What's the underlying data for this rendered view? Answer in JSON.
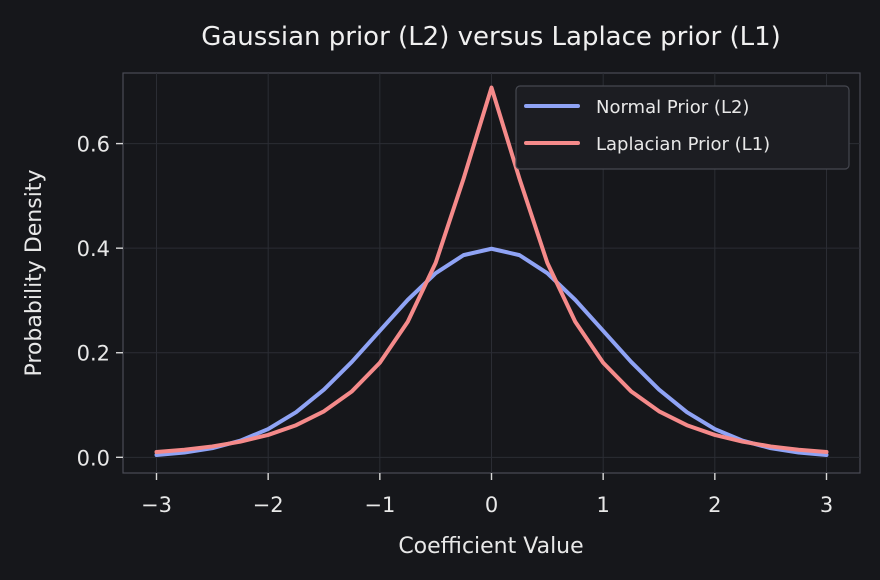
{
  "chart_data": {
    "type": "line",
    "title": "Gaussian prior (L2) versus Laplace prior (L1)",
    "xlabel": "Coefficient Value",
    "ylabel": "Probability Density",
    "xlim": [
      -3.3,
      3.3
    ],
    "ylim": [
      -0.03,
      0.735
    ],
    "xticks": [
      -3,
      -2,
      -1,
      0,
      1,
      2,
      3
    ],
    "xtick_labels": [
      "−3",
      "−2",
      "−1",
      "0",
      "1",
      "2",
      "3"
    ],
    "yticks": [
      0.0,
      0.2,
      0.4,
      0.6
    ],
    "ytick_labels": [
      "0.0",
      "0.2",
      "0.4",
      "0.6"
    ],
    "grid": true,
    "legend_position": "top-right",
    "background": "#16171b",
    "x": [
      -3.0,
      -2.75,
      -2.5,
      -2.25,
      -2.0,
      -1.75,
      -1.5,
      -1.25,
      -1.0,
      -0.75,
      -0.5,
      -0.25,
      0.0,
      0.25,
      0.5,
      0.75,
      1.0,
      1.25,
      1.5,
      1.75,
      2.0,
      2.25,
      2.5,
      2.75,
      3.0
    ],
    "series": [
      {
        "name": "Normal Prior (L2)",
        "color": "#8fa3f5",
        "values": [
          0.0044,
          0.0091,
          0.0175,
          0.0317,
          0.054,
          0.0863,
          0.1295,
          0.1826,
          0.242,
          0.3011,
          0.3521,
          0.3867,
          0.3989,
          0.3867,
          0.3521,
          0.3011,
          0.242,
          0.1826,
          0.1295,
          0.0863,
          0.054,
          0.0317,
          0.0175,
          0.0091,
          0.0044
        ]
      },
      {
        "name": "Laplacian Prior (L1)",
        "color": "#f58a8a",
        "values": [
          0.0101,
          0.0145,
          0.0208,
          0.0299,
          0.0428,
          0.0614,
          0.088,
          0.1262,
          0.1809,
          0.2593,
          0.3718,
          0.5331,
          0.7071,
          0.5331,
          0.3718,
          0.2593,
          0.1809,
          0.1262,
          0.088,
          0.0614,
          0.0428,
          0.0299,
          0.0208,
          0.0145,
          0.0101
        ]
      }
    ]
  }
}
